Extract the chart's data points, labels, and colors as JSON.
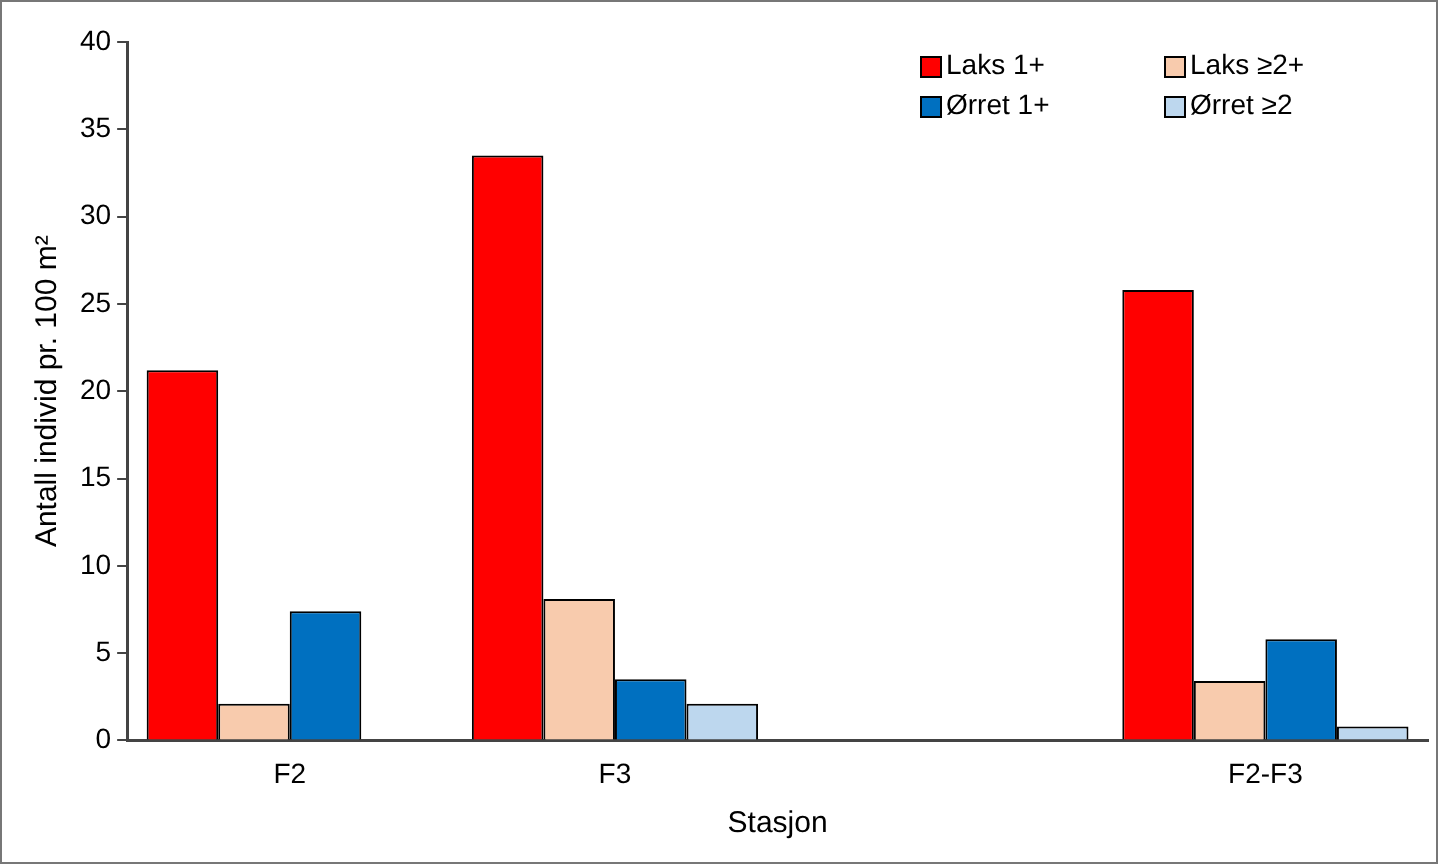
{
  "chart_data": {
    "type": "bar",
    "xlabel": "Stasjon",
    "ylabel": "Antall individ pr. 100 m²",
    "categories": [
      "F2",
      "F3",
      null,
      "F2-F3"
    ],
    "series": [
      {
        "name": "Laks 1+",
        "color": "#ff0000",
        "values": [
          21.2,
          33.5,
          null,
          25.8
        ]
      },
      {
        "name": "Laks ≥2+",
        "color": "#f8cbad",
        "values": [
          2.1,
          8.1,
          null,
          3.4
        ]
      },
      {
        "name": "Ørret 1+",
        "color": "#0070c0",
        "values": [
          7.4,
          3.5,
          null,
          5.8
        ]
      },
      {
        "name": "Ørret ≥2",
        "color": "#bdd7ee",
        "values": [
          null,
          2.1,
          null,
          0.8
        ]
      }
    ],
    "ylim": [
      0,
      40
    ],
    "yticks": [
      0,
      5,
      10,
      15,
      20,
      25,
      30,
      35,
      40
    ],
    "grid": false,
    "legend": "top right"
  }
}
